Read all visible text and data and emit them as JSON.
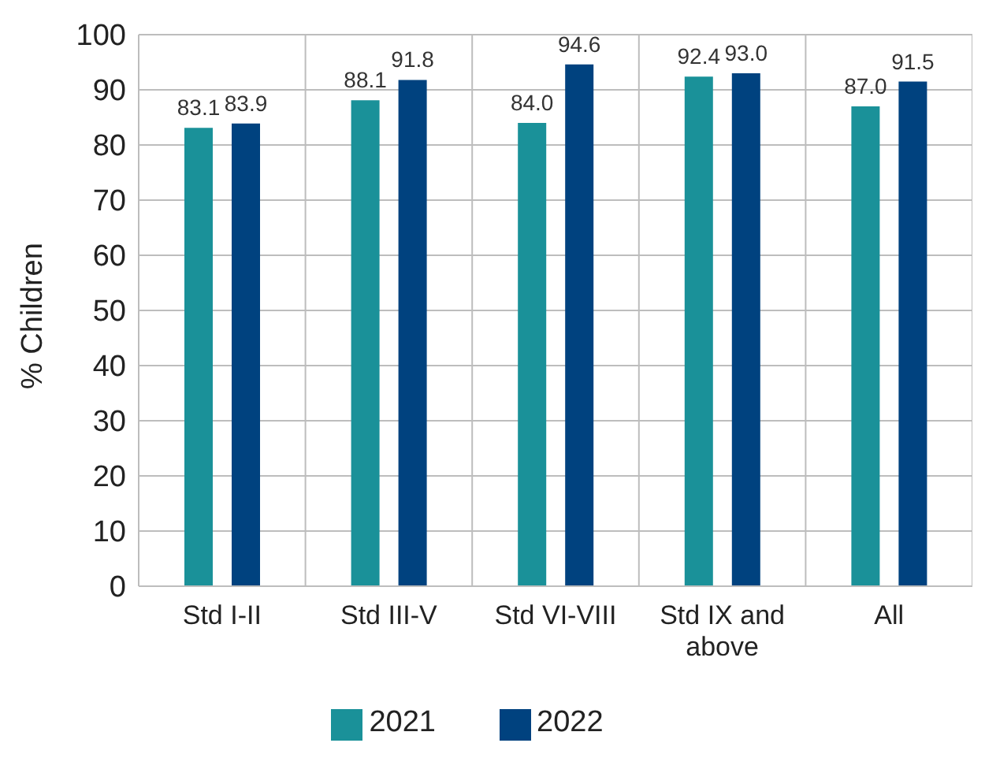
{
  "chart_data": {
    "type": "bar",
    "ylabel": "% Children",
    "categories": [
      "Std I-II",
      "Std III-V",
      "Std VI-VIII",
      "Std IX and above",
      "All"
    ],
    "series": [
      {
        "name": "2021",
        "color": "#1a9199",
        "values": [
          83.1,
          88.1,
          84.0,
          92.4,
          87.0
        ],
        "value_labels": [
          "83.1",
          "88.1",
          "84.0",
          "92.4",
          "87.0"
        ]
      },
      {
        "name": "2022",
        "color": "#00427f",
        "values": [
          83.9,
          91.8,
          94.6,
          93.0,
          91.5
        ],
        "value_labels": [
          "83.9",
          "91.8",
          "94.6",
          "93.0",
          "91.5"
        ]
      }
    ],
    "ylim": [
      0,
      100
    ],
    "yticks": [
      0,
      10,
      20,
      30,
      40,
      50,
      60,
      70,
      80,
      90,
      100
    ],
    "grid": true,
    "legend": "bottom"
  }
}
